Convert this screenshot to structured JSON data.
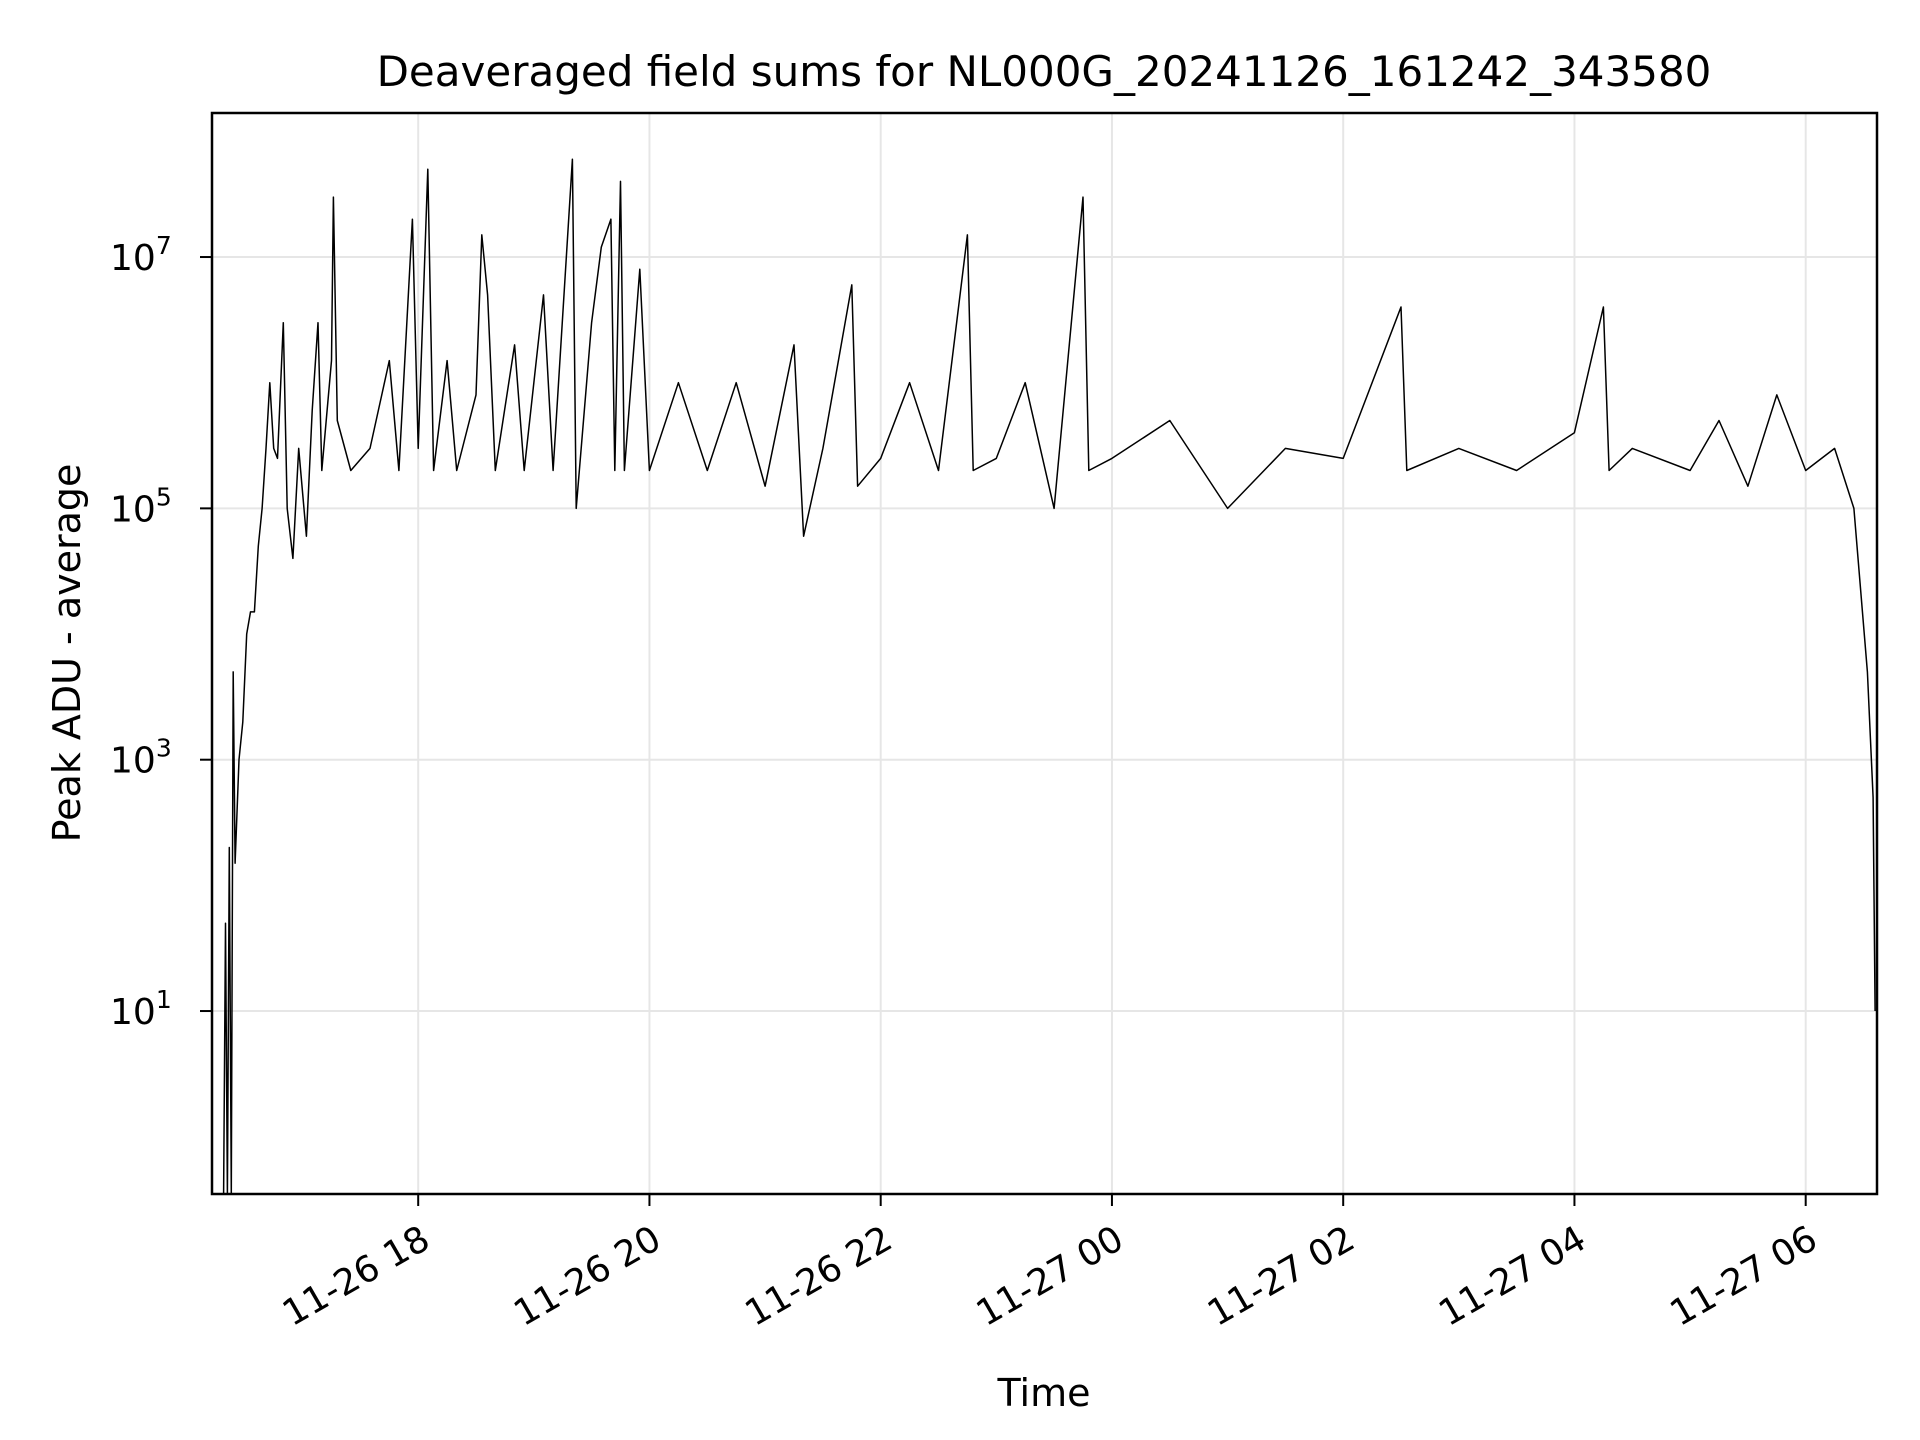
{
  "chart_data": {
    "type": "line",
    "title": "Deaveraged field sums for NL000G_20241126_161242_343580",
    "xlabel": "Time",
    "ylabel": "Peak ADU - average",
    "y_scale": "log",
    "xlim": [
      "2024-11-26 16:13",
      "2024-11-27 06:37"
    ],
    "ylim": [
      0.35,
      140000000
    ],
    "grid": true,
    "x_ticks": [
      "11-26 18",
      "11-26 20",
      "11-26 22",
      "11-27 00",
      "11-27 02",
      "11-27 04",
      "11-27 06"
    ],
    "x_tick_values": [
      "2024-11-26 18:00",
      "2024-11-26 20:00",
      "2024-11-26 22:00",
      "2024-11-27 00:00",
      "2024-11-27 02:00",
      "2024-11-27 04:00",
      "2024-11-27 06:00"
    ],
    "y_ticks": [
      {
        "base": "10",
        "exp": "1",
        "value": 10
      },
      {
        "base": "10",
        "exp": "3",
        "value": 1000
      },
      {
        "base": "10",
        "exp": "5",
        "value": 100000
      },
      {
        "base": "10",
        "exp": "7",
        "value": 10000000
      }
    ],
    "series": [
      {
        "color": "#000000",
        "points": [
          [
            "2024-11-26 16:19",
            0.35
          ],
          [
            "2024-11-26 16:20",
            50
          ],
          [
            "2024-11-26 16:21",
            0.35
          ],
          [
            "2024-11-26 16:22",
            200
          ],
          [
            "2024-11-26 16:23",
            0.35
          ],
          [
            "2024-11-26 16:24",
            5000
          ],
          [
            "2024-11-26 16:25",
            150
          ],
          [
            "2024-11-26 16:27",
            1000
          ],
          [
            "2024-11-26 16:29",
            2000
          ],
          [
            "2024-11-26 16:31",
            10000
          ],
          [
            "2024-11-26 16:33",
            15000
          ],
          [
            "2024-11-26 16:35",
            15000
          ],
          [
            "2024-11-26 16:37",
            50000
          ],
          [
            "2024-11-26 16:39",
            100000
          ],
          [
            "2024-11-26 16:41",
            300000
          ],
          [
            "2024-11-26 16:43",
            1000000
          ],
          [
            "2024-11-26 16:45",
            300000
          ],
          [
            "2024-11-26 16:47",
            250000
          ],
          [
            "2024-11-26 16:50",
            3000000
          ],
          [
            "2024-11-26 16:52",
            100000
          ],
          [
            "2024-11-26 16:55",
            40000
          ],
          [
            "2024-11-26 16:58",
            300000
          ],
          [
            "2024-11-26 17:02",
            60000
          ],
          [
            "2024-11-26 17:05",
            600000
          ],
          [
            "2024-11-26 17:08",
            3000000
          ],
          [
            "2024-11-26 17:10",
            200000
          ],
          [
            "2024-11-26 17:15",
            1500000
          ],
          [
            "2024-11-26 17:16",
            30000000
          ],
          [
            "2024-11-26 17:18",
            500000
          ],
          [
            "2024-11-26 17:25",
            200000
          ],
          [
            "2024-11-26 17:35",
            300000
          ],
          [
            "2024-11-26 17:45",
            1500000
          ],
          [
            "2024-11-26 17:50",
            200000
          ],
          [
            "2024-11-26 17:57",
            20000000
          ],
          [
            "2024-11-26 18:00",
            300000
          ],
          [
            "2024-11-26 18:05",
            50000000
          ],
          [
            "2024-11-26 18:08",
            200000
          ],
          [
            "2024-11-26 18:15",
            1500000
          ],
          [
            "2024-11-26 18:20",
            200000
          ],
          [
            "2024-11-26 18:30",
            800000
          ],
          [
            "2024-11-26 18:33",
            15000000
          ],
          [
            "2024-11-26 18:36",
            5000000
          ],
          [
            "2024-11-26 18:40",
            200000
          ],
          [
            "2024-11-26 18:50",
            2000000
          ],
          [
            "2024-11-26 18:55",
            200000
          ],
          [
            "2024-11-26 19:05",
            5000000
          ],
          [
            "2024-11-26 19:10",
            200000
          ],
          [
            "2024-11-26 19:20",
            60000000
          ],
          [
            "2024-11-26 19:22",
            100000
          ],
          [
            "2024-11-26 19:30",
            3000000
          ],
          [
            "2024-11-26 19:35",
            12000000
          ],
          [
            "2024-11-26 19:40",
            20000000
          ],
          [
            "2024-11-26 19:42",
            200000
          ],
          [
            "2024-11-26 19:45",
            40000000
          ],
          [
            "2024-11-26 19:47",
            200000
          ],
          [
            "2024-11-26 19:55",
            8000000
          ],
          [
            "2024-11-26 20:00",
            200000
          ],
          [
            "2024-11-26 20:15",
            1000000
          ],
          [
            "2024-11-26 20:30",
            200000
          ],
          [
            "2024-11-26 20:45",
            1000000
          ],
          [
            "2024-11-26 21:00",
            150000
          ],
          [
            "2024-11-26 21:15",
            2000000
          ],
          [
            "2024-11-26 21:20",
            60000
          ],
          [
            "2024-11-26 21:30",
            300000
          ],
          [
            "2024-11-26 21:45",
            6000000
          ],
          [
            "2024-11-26 21:48",
            150000
          ],
          [
            "2024-11-26 22:00",
            250000
          ],
          [
            "2024-11-26 22:15",
            1000000
          ],
          [
            "2024-11-26 22:30",
            200000
          ],
          [
            "2024-11-26 22:45",
            15000000
          ],
          [
            "2024-11-26 22:48",
            200000
          ],
          [
            "2024-11-26 23:00",
            250000
          ],
          [
            "2024-11-26 23:15",
            1000000
          ],
          [
            "2024-11-26 23:30",
            100000
          ],
          [
            "2024-11-26 23:45",
            30000000
          ],
          [
            "2024-11-26 23:48",
            200000
          ],
          [
            "2024-11-27 00:00",
            250000
          ],
          [
            "2024-11-27 00:30",
            500000
          ],
          [
            "2024-11-27 01:00",
            100000
          ],
          [
            "2024-11-27 01:30",
            300000
          ],
          [
            "2024-11-27 02:00",
            250000
          ],
          [
            "2024-11-27 02:30",
            4000000
          ],
          [
            "2024-11-27 02:33",
            200000
          ],
          [
            "2024-11-27 03:00",
            300000
          ],
          [
            "2024-11-27 03:30",
            200000
          ],
          [
            "2024-11-27 04:00",
            400000
          ],
          [
            "2024-11-27 04:15",
            4000000
          ],
          [
            "2024-11-27 04:18",
            200000
          ],
          [
            "2024-11-27 04:30",
            300000
          ],
          [
            "2024-11-27 05:00",
            200000
          ],
          [
            "2024-11-27 05:15",
            500000
          ],
          [
            "2024-11-27 05:30",
            150000
          ],
          [
            "2024-11-27 05:45",
            800000
          ],
          [
            "2024-11-27 06:00",
            200000
          ],
          [
            "2024-11-27 06:15",
            300000
          ],
          [
            "2024-11-27 06:25",
            100000
          ],
          [
            "2024-11-27 06:32",
            5000
          ],
          [
            "2024-11-27 06:35",
            500
          ],
          [
            "2024-11-27 06:36",
            10
          ]
        ]
      }
    ]
  }
}
